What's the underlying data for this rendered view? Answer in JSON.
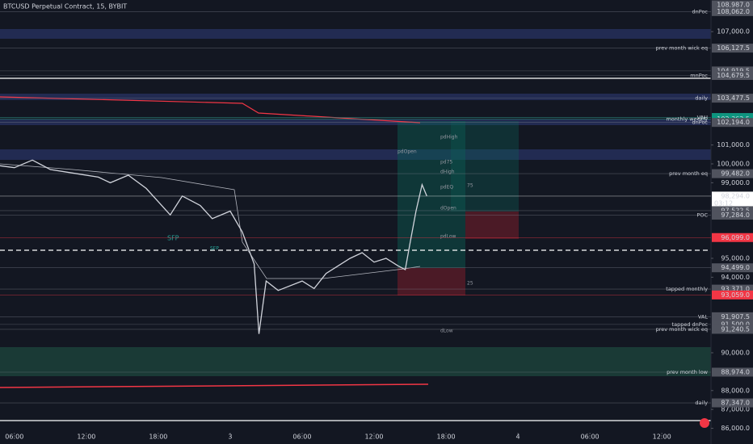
{
  "header": {
    "title": "BTCUSD Perpetual Contract, 15, BYBIT"
  },
  "chart_data": {
    "type": "line",
    "xlim": [
      -1.2,
      58.1
    ],
    "ylim": [
      85170,
      108675
    ],
    "xticks": [
      {
        "value": 0,
        "label": "06:00"
      },
      {
        "value": 6,
        "label": "12:00"
      },
      {
        "value": 12,
        "label": "18:00"
      },
      {
        "value": 18,
        "label": "3"
      },
      {
        "value": 24,
        "label": "06:00"
      },
      {
        "value": 30,
        "label": "12:00"
      },
      {
        "value": 36,
        "label": "18:00"
      },
      {
        "value": 42,
        "label": "4"
      },
      {
        "value": 48,
        "label": "06:00"
      },
      {
        "value": 54,
        "label": "12:00"
      }
    ],
    "yticks": [
      {
        "value": 107000,
        "label": "107,000.0"
      },
      {
        "value": 101000,
        "label": "101,000.0"
      },
      {
        "value": 100000,
        "label": "100,000.0"
      },
      {
        "value": 99000,
        "label": "99,000.0"
      },
      {
        "value": 95000,
        "label": "95,000.0"
      },
      {
        "value": 94000,
        "label": "94,000.0"
      },
      {
        "value": 90000,
        "label": "90,000.0"
      },
      {
        "value": 88000,
        "label": "88,000.0"
      },
      {
        "value": 87000,
        "label": "87,000.0"
      },
      {
        "value": 86000,
        "label": "86,000.0"
      }
    ],
    "series": [
      {
        "color": "#d1d4dc",
        "x": [
          -1.2,
          0,
          1.5,
          3,
          5,
          7,
          8,
          9.5,
          11,
          13,
          14,
          15.5,
          16.5,
          18,
          19,
          20,
          20.4,
          21,
          22,
          24,
          25,
          26,
          27,
          28,
          29,
          30,
          31,
          32,
          32.6,
          33,
          33.5,
          34,
          34.4
        ],
        "values": [
          99900,
          99800,
          100200,
          99700,
          99500,
          99300,
          99000,
          99400,
          98700,
          97300,
          98300,
          97800,
          97100,
          97500,
          96400,
          94700,
          91000,
          93800,
          93300,
          93800,
          93400,
          94200,
          94600,
          95000,
          95300,
          94800,
          95000,
          94600,
          94400,
          95800,
          97500,
          98900,
          98294
        ]
      }
    ],
    "levels": [
      {
        "value": 108987,
        "label": "108,987.0",
        "color": "#50535e"
      },
      {
        "value": 108062,
        "label": "108,062.0",
        "color": "#50535e",
        "note": "dnPoc",
        "note_color": "#26c6da"
      },
      {
        "value": 106127.5,
        "label": "106,127.5",
        "color": "#50535e",
        "note": "prev month wick eq",
        "note_color": "#7e57c2"
      },
      {
        "value": 104919.5,
        "label": "104,919.5",
        "color": "#50535e"
      },
      {
        "value": 104679.5,
        "label": "104,679.5",
        "color": "#50535e",
        "note": "mnPoc",
        "note_color": "#5c6bc0"
      },
      {
        "value": 103477.5,
        "label": "103,477.5",
        "color": "#50535e",
        "note": "daily",
        "note_color": "#26c6da"
      },
      {
        "value": 102456.5,
        "label": "102,456.5",
        "color": "#50535e"
      },
      {
        "value": 102448.5,
        "label": "102,448.5",
        "color": "#089981",
        "note": "VAH",
        "note_color": "#d1d4dc"
      },
      {
        "value": 102367,
        "label": "102,367.0",
        "color": "#50535e"
      },
      {
        "value": 102362.5,
        "label": "102,362.5",
        "color": "#089981",
        "note": "monthly weekly",
        "note_color": "#ffeb3b"
      },
      {
        "value": 102194,
        "label": "102,194.0",
        "color": "#50535e",
        "note": "dnPoc",
        "note_color": "#26c6da"
      },
      {
        "value": 99482,
        "label": "99,482.0",
        "color": "#50535e",
        "note": "prev month eq",
        "note_color": "#7e57c2"
      },
      {
        "value": 98294,
        "label": "98,294.0",
        "color": "#ffffff",
        "sublabel": "03:12"
      },
      {
        "value": 97522.5,
        "label": "97,522.5",
        "color": "#50535e"
      },
      {
        "value": 97284,
        "label": "97,284.0",
        "color": "#50535e",
        "note": "POC",
        "note_color": "#d1d4dc"
      },
      {
        "value": 96099,
        "label": "96,099.0",
        "color": "#f23645"
      },
      {
        "value": 94499,
        "label": "94,499.0",
        "color": "#50535e"
      },
      {
        "value": 93371,
        "label": "93,371.0",
        "color": "#50535e",
        "note": "tapped monthly",
        "note_color": "#7e57c2"
      },
      {
        "value": 93059,
        "label": "93,059.0",
        "color": "#f23645"
      },
      {
        "value": 91907.5,
        "label": "91,907.5",
        "color": "#50535e",
        "note": "VAL",
        "note_color": "#d1d4dc"
      },
      {
        "value": 91500,
        "label": "91,500.0",
        "color": "#50535e",
        "note": "tapped dnPoc",
        "note_color": "#26c6da"
      },
      {
        "value": 91240.5,
        "label": "91,240.5",
        "color": "#50535e",
        "note": "prev month wick eq",
        "note_color": "#7e57c2"
      },
      {
        "value": 88974,
        "label": "88,974.0",
        "color": "#50535e",
        "note": "prev month low",
        "note_color": "#3f4a8a"
      },
      {
        "value": 87347,
        "label": "87,347.0",
        "color": "#50535e",
        "note": "daily",
        "note_color": "#26c6da"
      }
    ],
    "annotations": [
      "SFP",
      "SFP",
      "pdHigh",
      "pdOpen",
      "pd75",
      "dHigh",
      "pdEQ",
      "75",
      "dOpen",
      "pdLow",
      "25",
      "dLow"
    ]
  }
}
